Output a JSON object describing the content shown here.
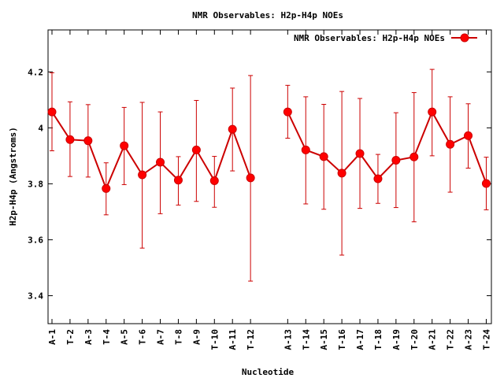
{
  "chart_data": {
    "type": "line",
    "title": "NMR Observables: H2p-H4p NOEs",
    "xlabel": "Nucleotide",
    "ylabel": "H2p-H4p (Angstroms)",
    "ylim": [
      3.3,
      4.35
    ],
    "yticks": [
      "3.4",
      "3.6",
      "3.8",
      "4",
      "4.2"
    ],
    "grid": false,
    "legend_position": "top-right",
    "color": "#ff0000",
    "line_color": "#cc0000",
    "series": [
      {
        "name": "NMR Observables: H2p-H4p NOEs",
        "segments": [
          {
            "categories": [
              "A-1",
              "T-2",
              "A-3",
              "T-4",
              "A-5",
              "T-6",
              "A-7",
              "T-8",
              "A-9",
              "T-10",
              "A-11",
              "T-12"
            ],
            "values": [
              4.057,
              3.958,
              3.954,
              3.783,
              3.936,
              3.832,
              3.877,
              3.813,
              3.921,
              3.811,
              3.995,
              3.821
            ],
            "err_low": [
              3.918,
              3.826,
              3.824,
              3.689,
              3.797,
              3.57,
              3.693,
              3.724,
              3.737,
              3.716,
              3.846,
              3.452
            ],
            "err_high": [
              4.197,
              4.093,
              4.083,
              3.875,
              4.073,
              4.091,
              4.057,
              3.897,
              4.098,
              3.898,
              4.142,
              4.187
            ]
          },
          {
            "categories": [
              "A-13",
              "T-14",
              "A-15",
              "T-16",
              "A-17",
              "T-18",
              "A-19",
              "T-20",
              "A-21",
              "T-22",
              "A-23",
              "T-24"
            ],
            "values": [
              4.057,
              3.921,
              3.897,
              3.838,
              3.908,
              3.818,
              3.884,
              3.896,
              4.057,
              3.941,
              3.972,
              3.801
            ],
            "err_low": [
              3.963,
              3.728,
              3.709,
              3.545,
              3.712,
              3.73,
              3.715,
              3.664,
              3.9,
              3.77,
              3.856,
              3.707
            ],
            "err_high": [
              4.152,
              4.111,
              4.084,
              4.13,
              4.105,
              3.905,
              4.054,
              4.126,
              4.209,
              4.111,
              4.086,
              3.895
            ]
          }
        ]
      }
    ]
  }
}
